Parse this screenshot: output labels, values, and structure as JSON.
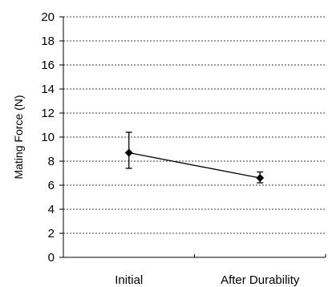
{
  "chart_data": {
    "type": "line",
    "categories": [
      "Initial",
      "After Durability"
    ],
    "series": [
      {
        "values": [
          8.7,
          6.6
        ],
        "error_low": [
          7.4,
          6.2
        ],
        "error_high": [
          10.4,
          7.1
        ],
        "color": "#000000",
        "marker": "diamond"
      }
    ],
    "title": "",
    "xlabel": "",
    "ylabel": "Mating Force (N)",
    "ylim": [
      0,
      20
    ],
    "yticks": [
      0,
      2,
      4,
      6,
      8,
      10,
      12,
      14,
      16,
      18,
      20
    ],
    "grid": true,
    "legend": "none"
  }
}
